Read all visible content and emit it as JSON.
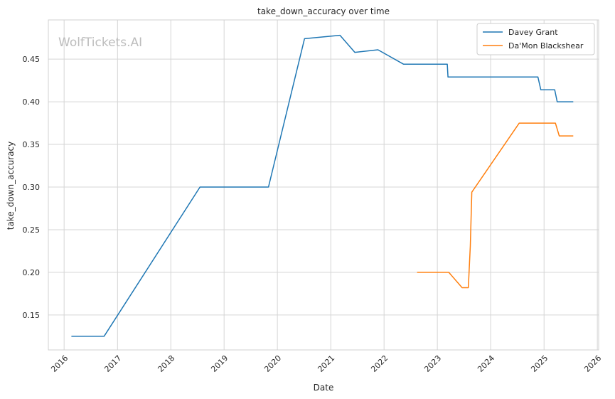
{
  "chart_data": {
    "type": "line",
    "title": "take_down_accuracy over time",
    "xlabel": "Date",
    "ylabel": "take_down_accuracy",
    "watermark": "WolfTickets.AI",
    "x_ticks": [
      "2016",
      "2017",
      "2018",
      "2019",
      "2020",
      "2021",
      "2022",
      "2023",
      "2024",
      "2025",
      "2026"
    ],
    "y_ticks": [
      "0.15",
      "0.20",
      "0.25",
      "0.30",
      "0.35",
      "0.40",
      "0.45"
    ],
    "xlim": [
      "2015-09-15",
      "2026-01-10"
    ],
    "ylim": [
      0.109,
      0.496
    ],
    "grid": true,
    "legend_position": "top-right",
    "series": [
      {
        "name": "Davey Grant",
        "color": "#1f77b4",
        "points": [
          [
            "2016-02-20",
            0.125
          ],
          [
            "2016-10-01",
            0.125
          ],
          [
            "2018-07-20",
            0.3
          ],
          [
            "2019-11-01",
            0.3
          ],
          [
            "2020-07-05",
            0.474
          ],
          [
            "2021-03-05",
            0.478
          ],
          [
            "2021-06-15",
            0.458
          ],
          [
            "2021-11-20",
            0.461
          ],
          [
            "2022-05-15",
            0.444
          ],
          [
            "2023-03-10",
            0.444
          ],
          [
            "2023-03-15",
            0.429
          ],
          [
            "2024-11-20",
            0.429
          ],
          [
            "2024-12-10",
            0.414
          ],
          [
            "2025-03-15",
            0.414
          ],
          [
            "2025-04-01",
            0.4
          ],
          [
            "2025-07-20",
            0.4
          ]
        ]
      },
      {
        "name": "Da'Mon Blackshear",
        "color": "#ff7f0e",
        "points": [
          [
            "2022-08-15",
            0.2
          ],
          [
            "2023-03-20",
            0.2
          ],
          [
            "2023-06-20",
            0.182
          ],
          [
            "2023-08-01",
            0.182
          ],
          [
            "2023-08-15",
            0.231
          ],
          [
            "2023-08-25",
            0.294
          ],
          [
            "2024-07-15",
            0.375
          ],
          [
            "2025-03-20",
            0.375
          ],
          [
            "2025-04-15",
            0.36
          ],
          [
            "2025-07-20",
            0.36
          ]
        ]
      }
    ]
  }
}
